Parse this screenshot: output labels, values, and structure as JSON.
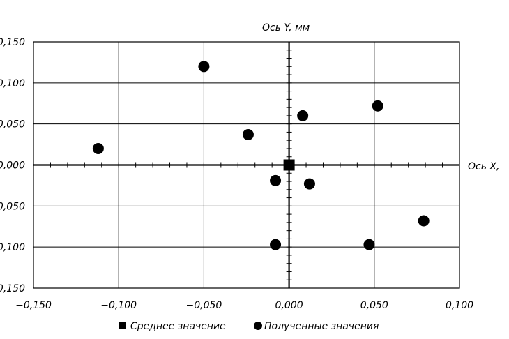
{
  "chart_data": {
    "type": "scatter",
    "x_axis_title": "Ось X,",
    "y_axis_title": "Ось Y, мм",
    "xlim": [
      -0.15,
      0.1
    ],
    "ylim": [
      -0.15,
      0.15
    ],
    "x_ticks": [
      "−0,150",
      "−0,100",
      "−0,050",
      "0,000",
      "0,050",
      "0,100"
    ],
    "y_ticks": [
      "0,150",
      "0,100",
      "0,050",
      "0,000",
      "0,050",
      "0,100",
      "0,150"
    ],
    "grid": true,
    "legend_position": "bottom",
    "series": [
      {
        "name": "Среднее значение",
        "marker": "square",
        "color": "#000000",
        "points": [
          [
            0.0,
            0.0
          ]
        ]
      },
      {
        "name": "Полученные значения",
        "marker": "circle",
        "color": "#000000",
        "points": [
          [
            -0.112,
            0.02
          ],
          [
            -0.05,
            0.12
          ],
          [
            -0.024,
            0.037
          ],
          [
            -0.008,
            -0.019
          ],
          [
            -0.008,
            -0.097
          ],
          [
            0.008,
            0.06
          ],
          [
            0.012,
            -0.023
          ],
          [
            0.047,
            -0.097
          ],
          [
            0.052,
            0.072
          ],
          [
            0.079,
            -0.068
          ]
        ]
      }
    ]
  }
}
